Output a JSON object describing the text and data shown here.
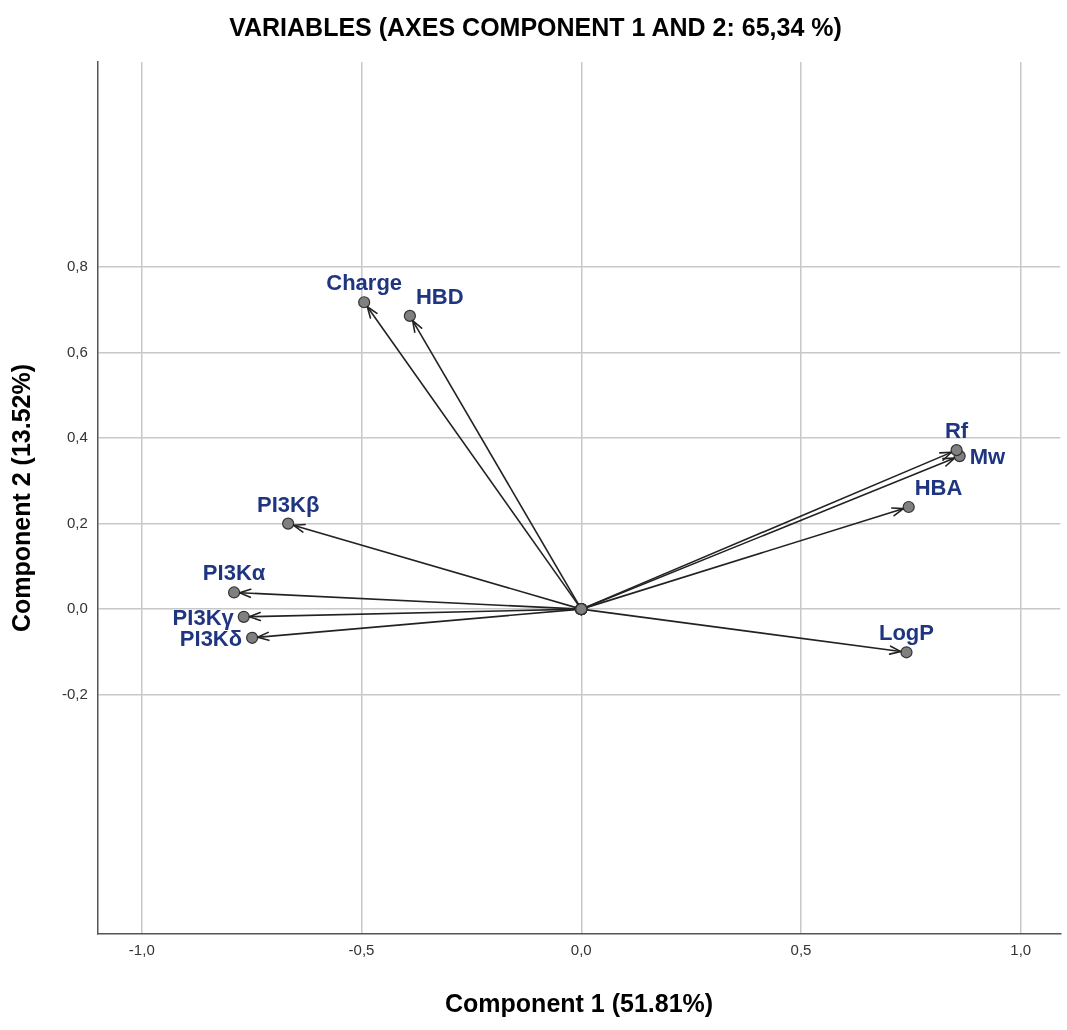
{
  "chart_data": {
    "type": "line",
    "title": "VARIABLES (AXES COMPONENT 1 AND 2: 65,34 %)",
    "xlabel": "Component 1 (51.81%)",
    "ylabel": "Component 2 (13.52%)",
    "series": [
      {
        "color": "#222222",
        "x": [
          0,
          -0.494
        ],
        "values": [
          0,
          0.718
        ]
      },
      {
        "color": "#222222",
        "x": [
          0,
          -0.39
        ],
        "values": [
          0,
          0.686
        ]
      },
      {
        "color": "#222222",
        "x": [
          0,
          0.854
        ],
        "values": [
          0,
          0.372
        ]
      },
      {
        "color": "#222222",
        "x": [
          0,
          0.861
        ],
        "values": [
          0,
          0.358
        ]
      },
      {
        "color": "#222222",
        "x": [
          0,
          0.745
        ],
        "values": [
          0,
          0.239
        ]
      },
      {
        "color": "#222222",
        "x": [
          0,
          0.74
        ],
        "values": [
          0,
          -0.101
        ]
      },
      {
        "color": "#222222",
        "x": [
          0,
          -0.667
        ],
        "values": [
          0,
          0.2
        ]
      },
      {
        "color": "#222222",
        "x": [
          0,
          -0.79
        ],
        "values": [
          0,
          0.039
        ]
      },
      {
        "color": "#222222",
        "x": [
          0,
          -0.768
        ],
        "values": [
          0,
          -0.018
        ]
      },
      {
        "color": "#222222",
        "x": [
          0,
          -0.749
        ],
        "values": [
          0,
          -0.067
        ]
      }
    ],
    "annotations": [
      {
        "text": "Charge",
        "x": -0.494,
        "y": 0.718
      },
      {
        "text": "HBD",
        "x": -0.39,
        "y": 0.686
      },
      {
        "text": "Rf",
        "x": 0.854,
        "y": 0.372
      },
      {
        "text": "Mw",
        "x": 0.861,
        "y": 0.358
      },
      {
        "text": "HBA",
        "x": 0.745,
        "y": 0.239
      },
      {
        "text": "LogP",
        "x": 0.74,
        "y": -0.101
      },
      {
        "text": "PI3Kβ",
        "x": -0.667,
        "y": 0.2
      },
      {
        "text": "PI3Kα",
        "x": -0.79,
        "y": 0.039
      },
      {
        "text": "PI3Kγ",
        "x": -0.768,
        "y": -0.018
      },
      {
        "text": "PI3Kδ",
        "x": -0.749,
        "y": -0.067
      }
    ],
    "xlim": [
      -1.1,
      1.09
    ],
    "ylim": [
      -0.76,
      1.28
    ],
    "xticks": [
      {
        "value": -1,
        "label": "-1,0"
      },
      {
        "value": -0.5,
        "label": "-0,5"
      },
      {
        "value": 0,
        "label": "0,0"
      },
      {
        "value": 0.5,
        "label": "0,5"
      },
      {
        "value": 1,
        "label": "1,0"
      }
    ],
    "yticks": [
      {
        "value": -0.2,
        "label": "-0,2"
      },
      {
        "value": 0,
        "label": "0,0"
      },
      {
        "value": 0.2,
        "label": "0,2"
      },
      {
        "value": 0.4,
        "label": "0,4"
      },
      {
        "value": 0.6,
        "label": "0,6"
      },
      {
        "value": 0.8,
        "label": "0,8"
      }
    ],
    "grid": true,
    "marker": "circle",
    "line_style": "solid",
    "legend": false
  }
}
